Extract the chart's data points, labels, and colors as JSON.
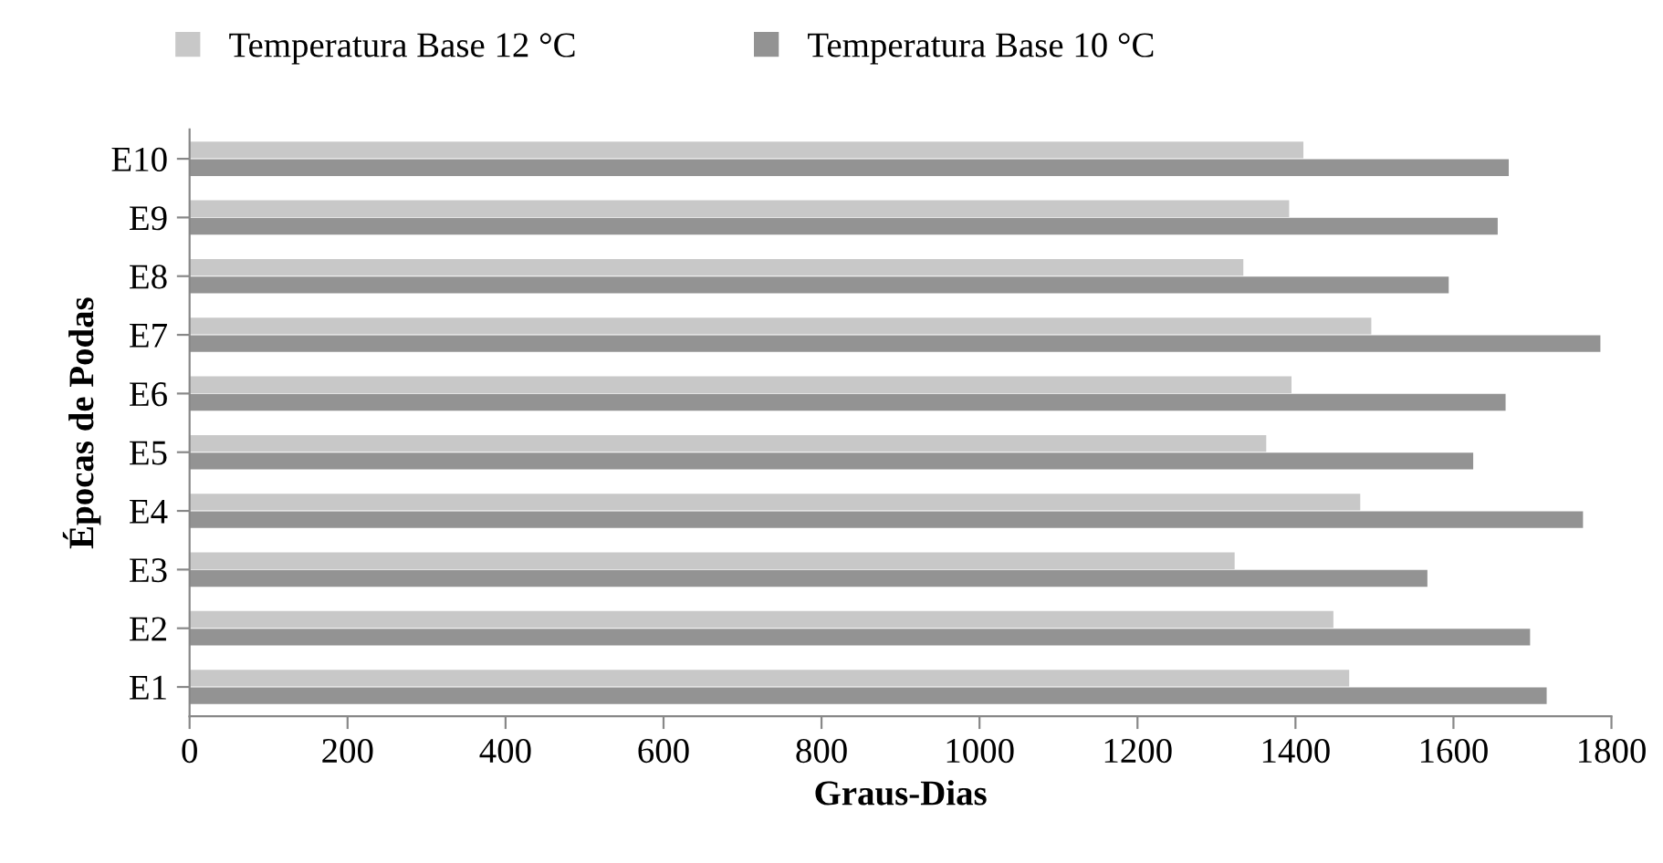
{
  "chart_data": {
    "type": "bar",
    "orientation": "horizontal",
    "xlabel": "Graus-Dias",
    "ylabel": "Épocas de Podas",
    "categories": [
      "E10",
      "E9",
      "E8",
      "E7",
      "E6",
      "E5",
      "E4",
      "E3",
      "E2",
      "E1"
    ],
    "series": [
      {
        "name": "Temperatura Base 12 °C",
        "color": "#c8c8c8",
        "values": [
          1410,
          1392,
          1334,
          1496,
          1395,
          1363,
          1482,
          1323,
          1448,
          1468
        ]
      },
      {
        "name": "Temperatura Base 10 °C",
        "color": "#939393",
        "values": [
          1670,
          1656,
          1594,
          1786,
          1666,
          1625,
          1764,
          1567,
          1697,
          1718
        ]
      }
    ],
    "xlim": [
      0,
      1800
    ],
    "xticks": [
      0,
      200,
      400,
      600,
      800,
      1000,
      1200,
      1400,
      1600,
      1800
    ],
    "grid": false,
    "legend": "top"
  }
}
